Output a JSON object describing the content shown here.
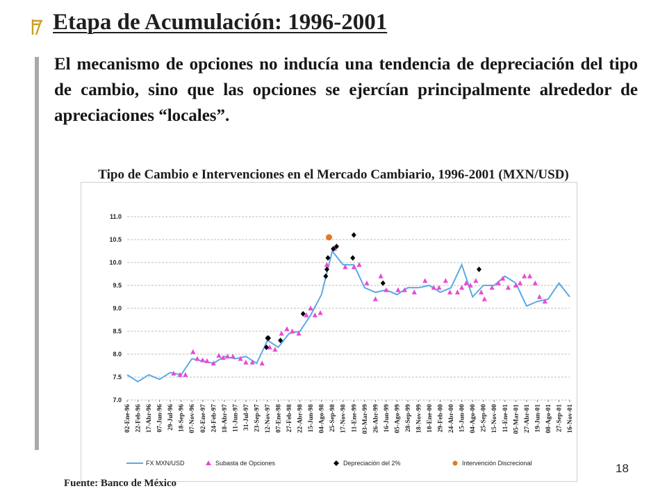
{
  "slide": {
    "title": "Etapa de Acumulación: 1996-2001",
    "body": "El mecanismo de opciones no inducía una tendencia de depreciación del tipo de cambio, sino que las opciones se ejercían principalmente alrededor de apreciaciones “locales”.",
    "source": "Fuente: Banco de México",
    "page_number": "18"
  },
  "colors": {
    "line": "#5aa9e6",
    "triangle": "#e84bd3",
    "diamond": "#000000",
    "circle": "#e07a24"
  },
  "chart_data": {
    "type": "line",
    "title": "Tipo de Cambio e Intervenciones en el Mercado Cambiario, 1996-2001 (MXN/USD)",
    "ylim": [
      7.0,
      11.0
    ],
    "yticks": [
      "11.0",
      "10.5",
      "10.0",
      "9.5",
      "9.0",
      "8.5",
      "8.0",
      "7.5",
      "7.0"
    ],
    "categories": [
      "02-Ene-96",
      "22-Feb-96",
      "17-Abr-96",
      "07-Jun-96",
      "29-Jul-96",
      "18-Sep-96",
      "07-Nov-96",
      "02-Ene-97",
      "24-Feb-97",
      "18-Abr-97",
      "11-Jun-97",
      "31-Jul-97",
      "23-Sep-97",
      "12-Nov-97",
      "07-Ene-98",
      "27-Feb-98",
      "22-Abr-98",
      "15-Jun-98",
      "04-Ago-98",
      "25-Sep-98",
      "17-Nov-98",
      "11-Ene-99",
      "03-Mar-99",
      "26-Abr-99",
      "16-Jun-99",
      "05-Ago-99",
      "28-Sep-99",
      "18-Nov-99",
      "10-Ene-00",
      "29-Feb-00",
      "24-Abr-00",
      "15-Jun-00",
      "04-Ago-00",
      "25-Sep-00",
      "15-Nov-00",
      "11-Ene-01",
      "05-Mar-01",
      "27-Abr-01",
      "19-Jun-01",
      "08-Ago-01",
      "27-Sep-01",
      "16-Nov-01"
    ],
    "legend": [
      "FX MXN/USD",
      "Subasta de Opciones",
      "Depreciación del 2%",
      "Intervención Discrecional"
    ],
    "series": [
      {
        "name": "FX MXN/USD",
        "values": [
          7.55,
          7.4,
          7.55,
          7.45,
          7.6,
          7.55,
          7.9,
          7.85,
          7.8,
          7.95,
          7.9,
          7.95,
          7.8,
          8.3,
          8.15,
          8.45,
          8.5,
          8.85,
          9.3,
          10.25,
          9.95,
          9.95,
          9.45,
          9.35,
          9.4,
          9.3,
          9.45,
          9.45,
          9.5,
          9.35,
          9.45,
          9.95,
          9.25,
          9.5,
          9.5,
          9.7,
          9.55,
          9.05,
          9.15,
          9.2,
          9.55,
          9.25
        ]
      },
      {
        "name": "Subasta de Opciones",
        "points": [
          [
            4.3,
            7.58
          ],
          [
            4.9,
            7.55
          ],
          [
            5.4,
            7.55
          ],
          [
            6.1,
            8.05
          ],
          [
            6.5,
            7.9
          ],
          [
            7.0,
            7.87
          ],
          [
            7.4,
            7.85
          ],
          [
            8.0,
            7.8
          ],
          [
            8.5,
            7.97
          ],
          [
            8.9,
            7.92
          ],
          [
            9.3,
            7.95
          ],
          [
            9.8,
            7.95
          ],
          [
            10.5,
            7.9
          ],
          [
            11.0,
            7.82
          ],
          [
            11.6,
            7.82
          ],
          [
            12.5,
            7.8
          ],
          [
            13.2,
            8.15
          ],
          [
            13.7,
            8.1
          ],
          [
            14.3,
            8.45
          ],
          [
            14.8,
            8.55
          ],
          [
            15.3,
            8.5
          ],
          [
            15.9,
            8.45
          ],
          [
            16.6,
            8.85
          ],
          [
            17.0,
            9.0
          ],
          [
            17.4,
            8.85
          ],
          [
            17.9,
            8.9
          ],
          [
            18.5,
            9.95
          ],
          [
            19.2,
            10.3
          ],
          [
            20.2,
            9.9
          ],
          [
            21.0,
            9.9
          ],
          [
            21.5,
            9.95
          ],
          [
            22.2,
            9.55
          ],
          [
            23.0,
            9.2
          ],
          [
            23.5,
            9.7
          ],
          [
            24.0,
            9.4
          ],
          [
            25.1,
            9.4
          ],
          [
            25.7,
            9.4
          ],
          [
            26.6,
            9.35
          ],
          [
            27.6,
            9.6
          ],
          [
            28.4,
            9.45
          ],
          [
            28.9,
            9.45
          ],
          [
            29.5,
            9.6
          ],
          [
            29.9,
            9.35
          ],
          [
            30.6,
            9.35
          ],
          [
            31.0,
            9.45
          ],
          [
            31.4,
            9.55
          ],
          [
            31.8,
            9.5
          ],
          [
            32.3,
            9.6
          ],
          [
            32.8,
            9.35
          ],
          [
            33.1,
            9.2
          ],
          [
            33.8,
            9.45
          ],
          [
            34.4,
            9.55
          ],
          [
            34.8,
            9.65
          ],
          [
            35.3,
            9.45
          ],
          [
            36.0,
            9.5
          ],
          [
            36.4,
            9.55
          ],
          [
            36.8,
            9.7
          ],
          [
            37.3,
            9.7
          ],
          [
            37.8,
            9.55
          ],
          [
            38.2,
            9.25
          ],
          [
            38.7,
            9.15
          ]
        ]
      },
      {
        "name": "Depreciación del 2%",
        "points": [
          [
            12.9,
            8.15
          ],
          [
            13.0,
            8.35
          ],
          [
            13.1,
            8.35
          ],
          [
            14.2,
            8.3
          ],
          [
            16.3,
            8.88
          ],
          [
            18.4,
            9.7
          ],
          [
            18.5,
            9.85
          ],
          [
            18.6,
            10.1
          ],
          [
            19.1,
            10.3
          ],
          [
            19.4,
            10.35
          ],
          [
            20.9,
            10.1
          ],
          [
            21.0,
            10.6
          ],
          [
            23.7,
            9.55
          ],
          [
            32.6,
            9.85
          ]
        ]
      },
      {
        "name": "Intervención Discrecional",
        "points": [
          [
            18.7,
            10.55
          ]
        ]
      }
    ]
  }
}
